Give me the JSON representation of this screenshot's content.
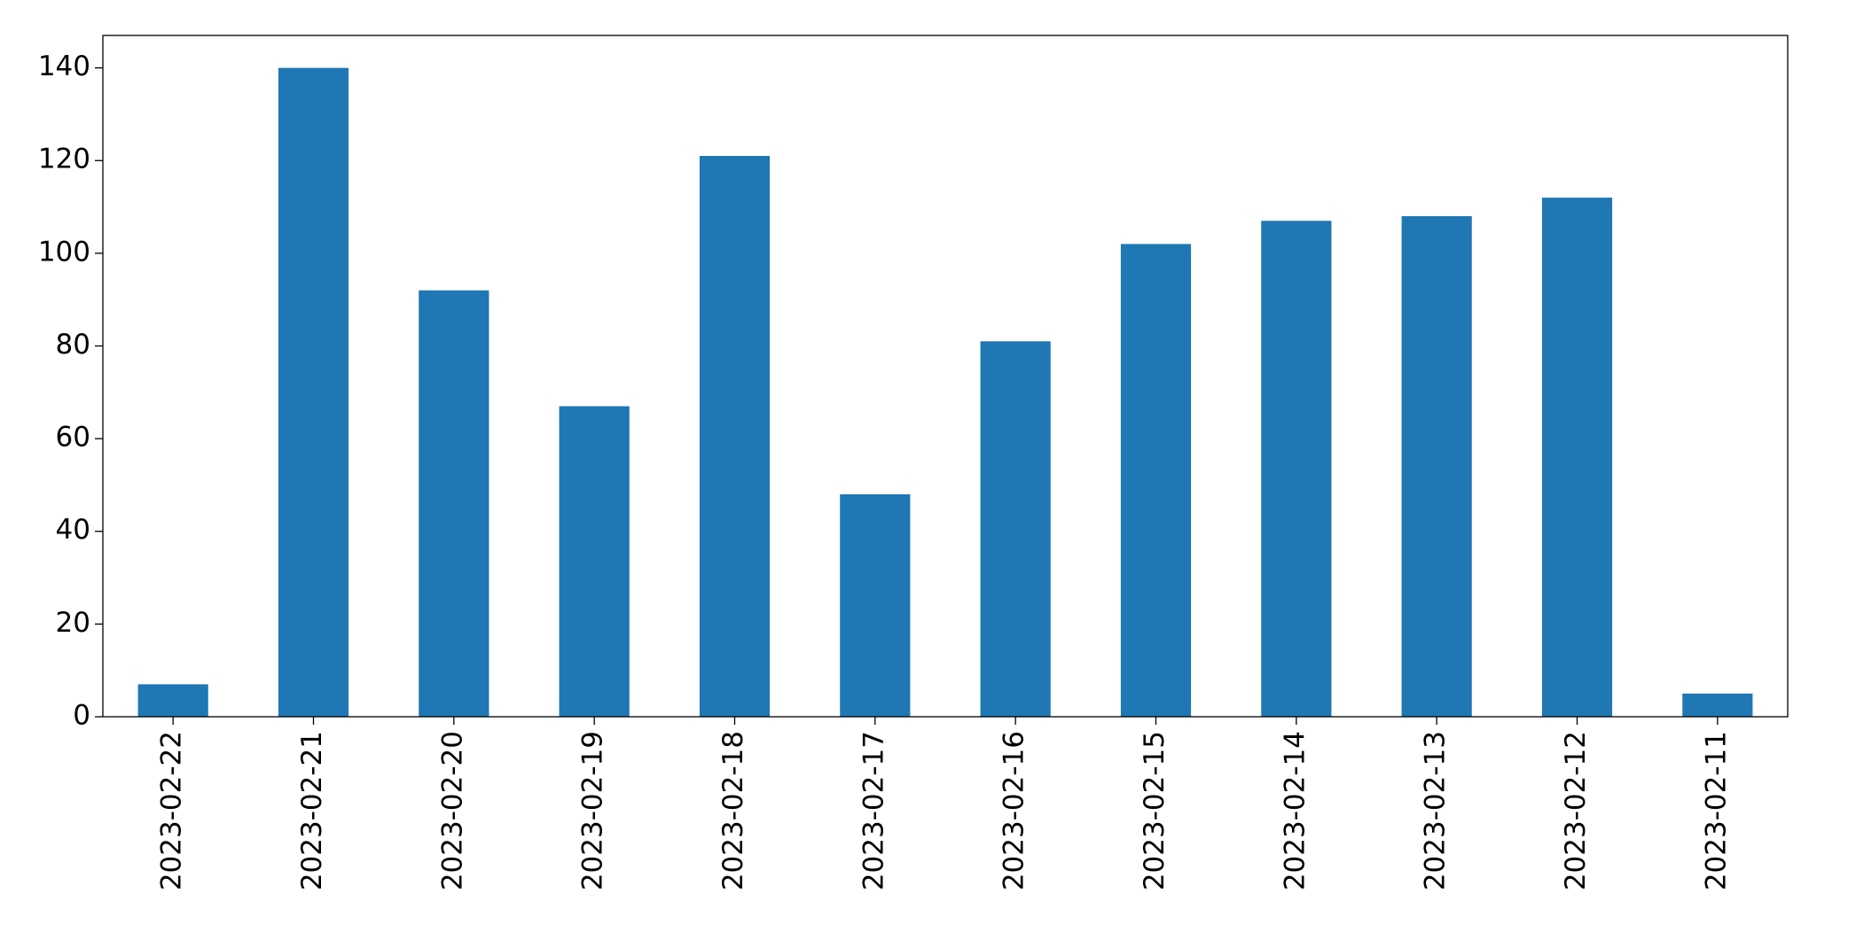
{
  "chart_data": {
    "type": "bar",
    "categories": [
      "2023-02-22",
      "2023-02-21",
      "2023-02-20",
      "2023-02-19",
      "2023-02-18",
      "2023-02-17",
      "2023-02-16",
      "2023-02-15",
      "2023-02-14",
      "2023-02-13",
      "2023-02-12",
      "2023-02-11"
    ],
    "values": [
      7,
      140,
      92,
      67,
      121,
      48,
      81,
      102,
      107,
      108,
      112,
      5
    ],
    "color": "#1f77b4",
    "ylim": [
      0,
      147
    ],
    "yticks": [
      0,
      20,
      40,
      60,
      80,
      100,
      120,
      140
    ],
    "grid": false
  }
}
